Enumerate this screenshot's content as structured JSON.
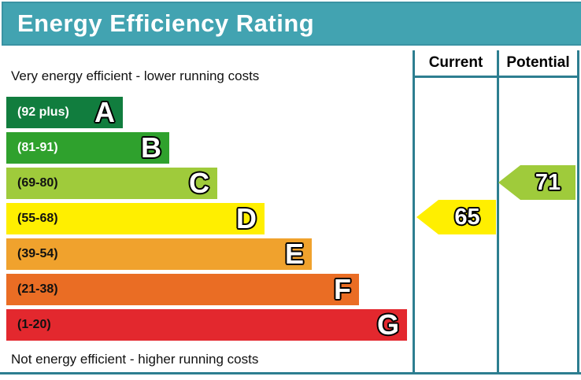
{
  "title": "Energy Efficiency Rating",
  "top_note": "Very energy efficient - lower running costs",
  "bottom_note": "Not energy efficient - higher running costs",
  "columns": {
    "current": "Current",
    "potential": "Potential"
  },
  "bands": [
    {
      "letter": "A",
      "range": "(92 plus)",
      "color": "#117d3e",
      "label_color": "#ffffff"
    },
    {
      "letter": "B",
      "range": "(81-91)",
      "color": "#2fa12d",
      "label_color": "#ffffff"
    },
    {
      "letter": "C",
      "range": "(69-80)",
      "color": "#9fcb3b",
      "label_color": "#111111"
    },
    {
      "letter": "D",
      "range": "(55-68)",
      "color": "#ffef00",
      "label_color": "#111111"
    },
    {
      "letter": "E",
      "range": "(39-54)",
      "color": "#f0a22d",
      "label_color": "#111111"
    },
    {
      "letter": "F",
      "range": "(21-38)",
      "color": "#ea6d24",
      "label_color": "#111111"
    },
    {
      "letter": "G",
      "range": "(1-20)",
      "color": "#e3282e",
      "label_color": "#111111"
    }
  ],
  "current": {
    "value": "65",
    "color": "#ffef00"
  },
  "potential": {
    "value": "71",
    "color": "#9fcb3b"
  },
  "theme": {
    "header_bg": "#42a3b1",
    "line_color": "#2d7e90"
  },
  "chart_data": {
    "type": "bar",
    "title": "Energy Efficiency Rating",
    "categories": [
      "A",
      "B",
      "C",
      "D",
      "E",
      "F",
      "G"
    ],
    "band_ranges": [
      "92 plus",
      "81-91",
      "69-80",
      "55-68",
      "39-54",
      "21-38",
      "1-20"
    ],
    "band_colors": [
      "#117d3e",
      "#2fa12d",
      "#9fcb3b",
      "#ffef00",
      "#f0a22d",
      "#ea6d24",
      "#e3282e"
    ],
    "series": [
      {
        "name": "Current",
        "value": 65,
        "band": "D"
      },
      {
        "name": "Potential",
        "value": 71,
        "band": "C"
      }
    ],
    "value_range": [
      1,
      100
    ],
    "annotations": [
      "Very energy efficient - lower running costs",
      "Not energy efficient - higher running costs"
    ],
    "legend_position": "none",
    "grid": false
  }
}
